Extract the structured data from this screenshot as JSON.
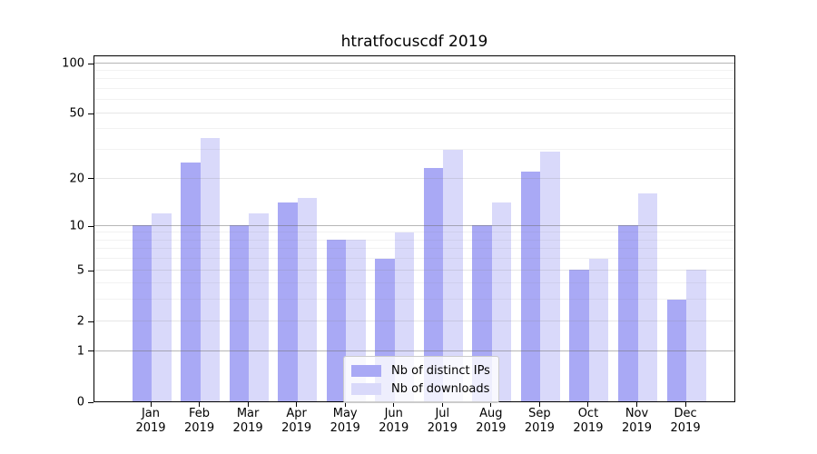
{
  "title": "htratfocuscdf 2019",
  "chart_data": {
    "type": "bar",
    "title": "htratfocuscdf 2019",
    "categories": [
      "Jan",
      "Feb",
      "Mar",
      "Apr",
      "May",
      "Jun",
      "Jul",
      "Aug",
      "Sep",
      "Oct",
      "Nov",
      "Dec"
    ],
    "year": "2019",
    "series": [
      {
        "name": "Nb of distinct IPs",
        "color": "#a9a9f5",
        "values": [
          10,
          25,
          10,
          14,
          8,
          6,
          23,
          10,
          22,
          5,
          10,
          3
        ]
      },
      {
        "name": "Nb of downloads",
        "color": "#d9d9fa",
        "values": [
          12,
          35,
          12,
          15,
          8,
          9,
          30,
          14,
          29,
          6,
          16,
          5
        ]
      }
    ],
    "xlabel": "",
    "ylabel": "",
    "yscale": "log1p",
    "ylim": [
      0,
      112
    ],
    "yticks": [
      0,
      1,
      2,
      5,
      10,
      20,
      50,
      100
    ],
    "yticks_minor": [
      3,
      4,
      6,
      7,
      8,
      9,
      30,
      40,
      60,
      70,
      80,
      90
    ],
    "grid": "both",
    "legend_position": "lower center",
    "colors": {
      "grid_decade": "rgba(110,110,110,0.50)",
      "grid_major": "rgba(128,128,128,0.20)",
      "grid_minor": "rgba(128,128,128,0.10)",
      "axis": "#000000",
      "background": "#ffffff"
    }
  }
}
